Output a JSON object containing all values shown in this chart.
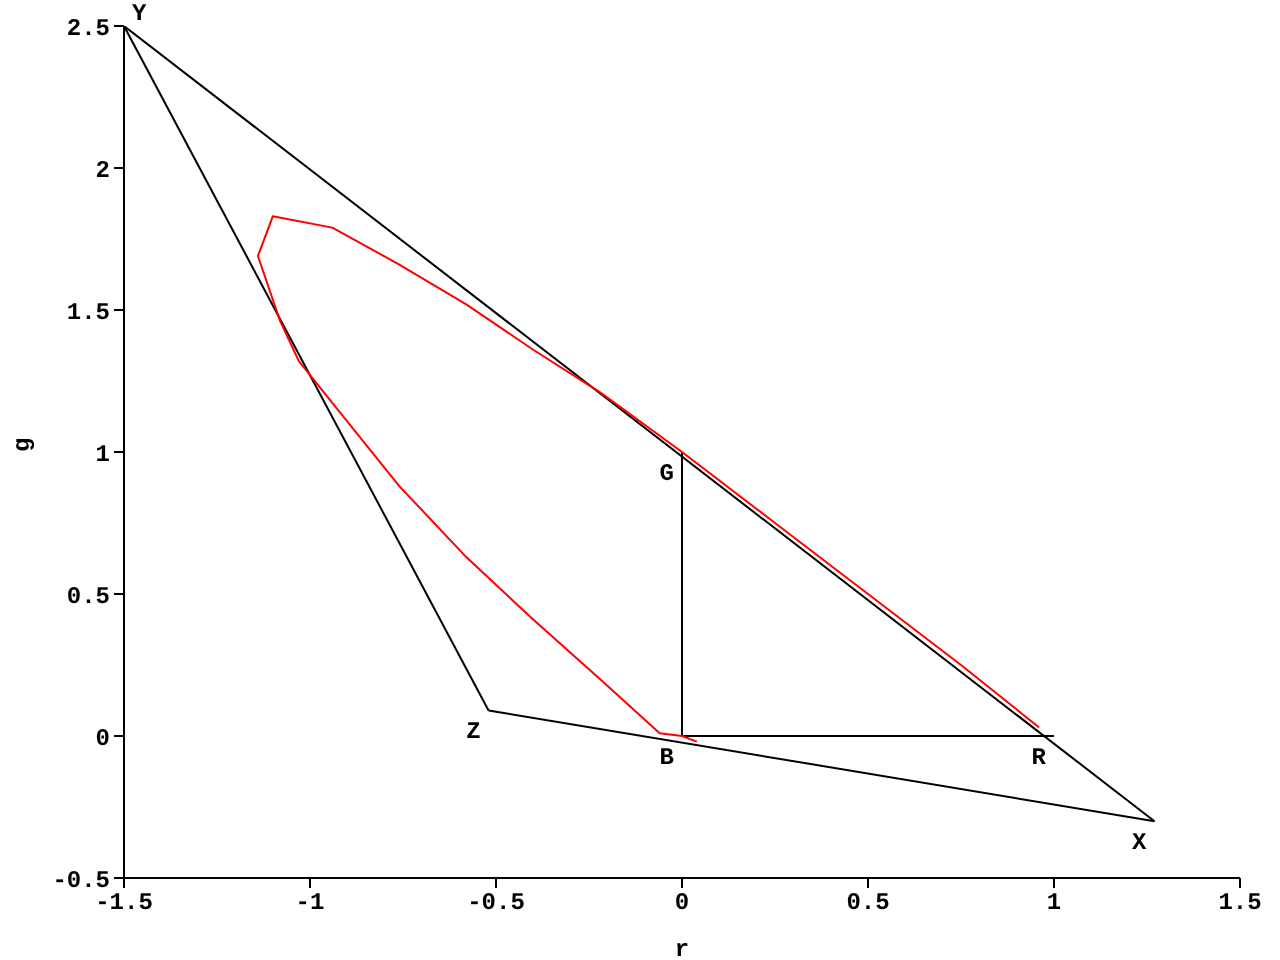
{
  "chart_data": {
    "type": "line",
    "xlabel": "r",
    "ylabel": "g",
    "xlim": [
      -1.5,
      1.5
    ],
    "xticks": [
      -1.5,
      -1,
      -0.5,
      0,
      0.5,
      1,
      1.5
    ],
    "ylim": [
      -0.5,
      2.5
    ],
    "yticks": [
      -0.5,
      0,
      0.5,
      1,
      1.5,
      2,
      2.5
    ],
    "grid": false,
    "marker": "none",
    "line_style": "solid",
    "series": [
      {
        "color": "#000000",
        "x": [
          -1.5,
          1.27
        ],
        "values": [
          2.5,
          -0.3
        ]
      },
      {
        "color": "#000000",
        "x": [
          -1.5,
          -0.52
        ],
        "values": [
          2.5,
          0.09
        ]
      },
      {
        "color": "#000000",
        "x": [
          -0.52,
          1.27
        ],
        "values": [
          0.09,
          -0.3
        ]
      },
      {
        "color": "#000000",
        "x": [
          0,
          1
        ],
        "values": [
          0,
          0
        ]
      },
      {
        "color": "#000000",
        "x": [
          0,
          0
        ],
        "values": [
          0,
          1
        ]
      },
      {
        "color": "#ff0000",
        "x": [
          0.04,
          0,
          -0.06,
          -0.22,
          -0.4,
          -0.58,
          -0.76,
          -0.92,
          -1.03,
          -1.08,
          -1.14,
          -1.1,
          -0.94,
          -0.76,
          -0.58,
          -0.4,
          -0.22,
          0,
          0.25,
          0.5,
          0.75,
          0.96
        ],
        "values": [
          -0.02,
          0,
          0.01,
          0.2,
          0.41,
          0.63,
          0.88,
          1.14,
          1.32,
          1.46,
          1.69,
          1.83,
          1.79,
          1.66,
          1.52,
          1.36,
          1.21,
          1,
          0.75,
          0.5,
          0.25,
          0.03
        ]
      }
    ],
    "annotations": [
      {
        "text": "X",
        "x": 1.27,
        "y": -0.3
      },
      {
        "text": "Y",
        "x": -1.5,
        "y": 2.5
      },
      {
        "text": "Z",
        "x": -0.52,
        "y": 0.09
      },
      {
        "text": "R",
        "x": 1,
        "y": 0
      },
      {
        "text": "G",
        "x": 0,
        "y": 1
      },
      {
        "text": "B",
        "x": 0,
        "y": 0
      }
    ]
  }
}
